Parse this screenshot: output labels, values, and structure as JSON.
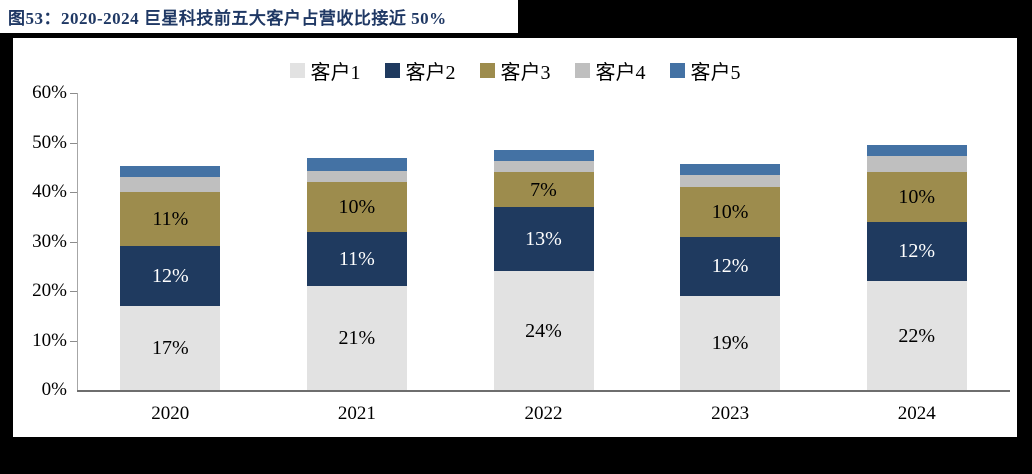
{
  "figure": {
    "title": "图53：2020-2024 巨星科技前五大客户占营收比接近 50%",
    "title_color": "#1f3864",
    "card_background": "#ffffff",
    "page_background": "#000000"
  },
  "chart_data": {
    "type": "bar",
    "stacked": true,
    "title": "2020-2024 巨星科技前五大客户占营收比接近 50%",
    "categories": [
      "2020",
      "2021",
      "2022",
      "2023",
      "2024"
    ],
    "series": [
      {
        "name": "客户1",
        "color": "#e2e2e2",
        "label_color": "#000000",
        "values": [
          17,
          21,
          24,
          19,
          22
        ]
      },
      {
        "name": "客户2",
        "color": "#1f3a5f",
        "label_color": "#ffffff",
        "values": [
          12,
          11,
          13,
          12,
          12
        ]
      },
      {
        "name": "客户3",
        "color": "#9d8c4d",
        "label_color": "#000000",
        "values": [
          11,
          10,
          7,
          10,
          10
        ]
      },
      {
        "name": "客户4",
        "color": "#bfbfbf",
        "label_color": "#000000",
        "values": [
          3,
          2.2,
          2.3,
          2.4,
          3.2
        ]
      },
      {
        "name": "客户5",
        "color": "#4472a4",
        "label_color": "#000000",
        "values": [
          2.3,
          2.7,
          2.1,
          2.2,
          2.2
        ]
      }
    ],
    "xlabel": "",
    "ylabel": "",
    "ylim": [
      0,
      60
    ],
    "ytick_step": 10,
    "ytick_suffix": "%",
    "data_label_suffix": "%",
    "data_label_min_value": 5,
    "legend_position": "top",
    "grid": false,
    "axis_color": "#6e6e6e"
  }
}
